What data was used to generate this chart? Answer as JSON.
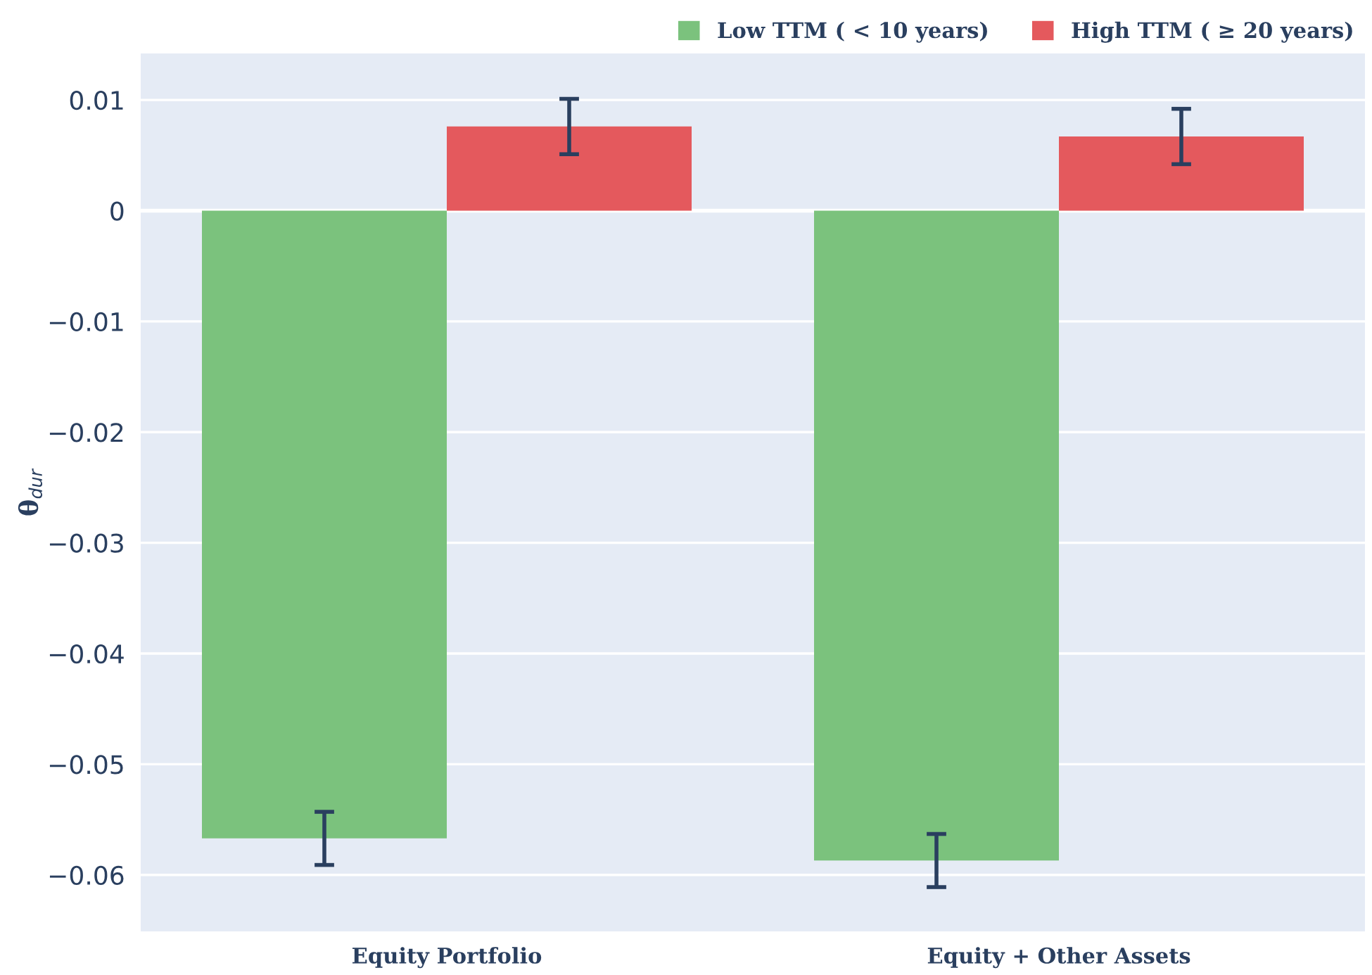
{
  "chart_data": {
    "type": "bar",
    "ylabel": "θ$_{dur}$",
    "categories": [
      "Equity Portfolio",
      "Equity + Other Assets"
    ],
    "series": [
      {
        "name": "Low TTM ( < 10 years)",
        "color": "#7bc27d",
        "values": [
          -0.0567,
          -0.0587
        ],
        "errors": [
          0.0024,
          0.0024
        ]
      },
      {
        "name": "High TTM ( ≥ 20 years)",
        "color": "#e4595d",
        "values": [
          0.0076,
          0.0067
        ],
        "errors": [
          0.0025,
          0.0025
        ]
      }
    ],
    "ylim": [
      -0.0651,
      0.0142
    ],
    "yticks": [
      {
        "value": 0.01,
        "label": "0.01"
      },
      0,
      {
        "value": -0.01,
        "label": "−0.01"
      },
      {
        "value": -0.02,
        "label": "−0.02"
      },
      {
        "value": -0.03,
        "label": "−0.03"
      },
      {
        "value": -0.04,
        "label": "−0.04"
      },
      {
        "value": -0.05,
        "label": "−0.05"
      },
      {
        "value": -0.06,
        "label": "−0.06"
      }
    ],
    "grid": "y",
    "legend": "top right"
  }
}
